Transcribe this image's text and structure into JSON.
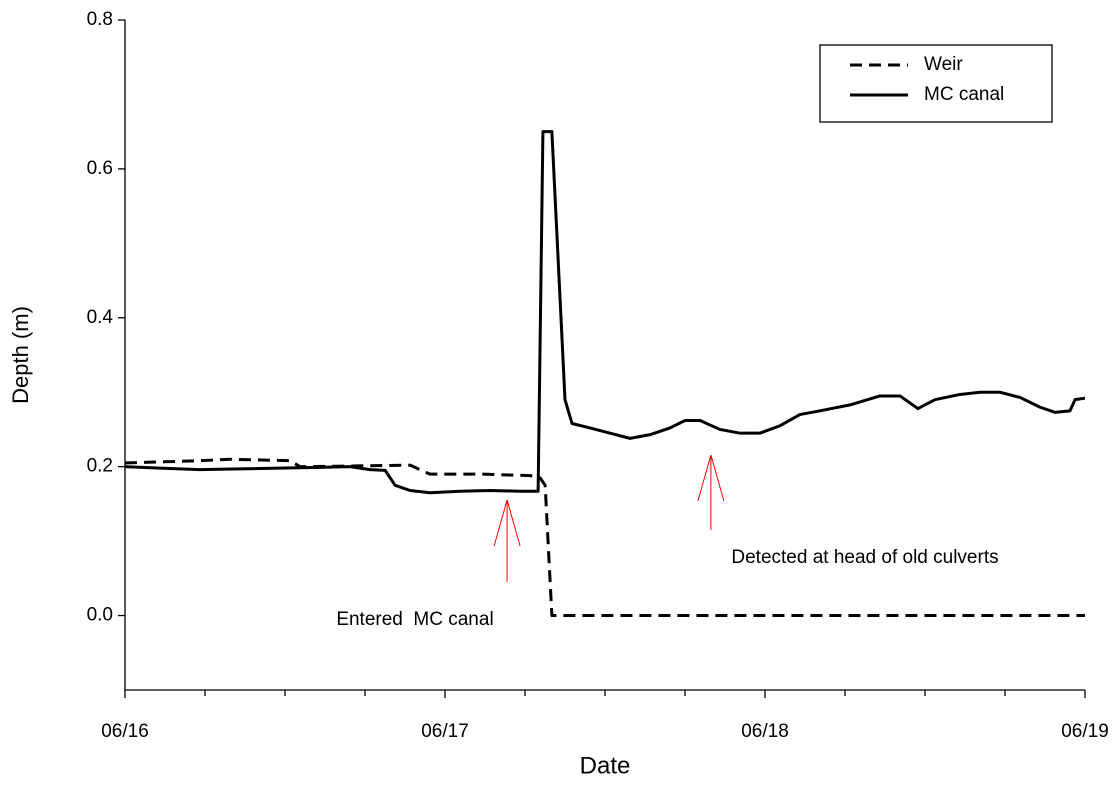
{
  "chart_data": {
    "type": "line",
    "xlabel": "Date",
    "ylabel": "Depth (m)",
    "xlim": [
      0,
      3
    ],
    "ylim": [
      -0.1,
      0.8
    ],
    "xticks": [
      {
        "value": 0,
        "label": "06/16"
      },
      {
        "value": 1,
        "label": "06/17"
      },
      {
        "value": 2,
        "label": "06/18"
      },
      {
        "value": 3,
        "label": "06/19"
      }
    ],
    "xminorticks": [
      0.25,
      0.5,
      0.75,
      1.25,
      1.5,
      1.75,
      2.25,
      2.5,
      2.75
    ],
    "yticks": [
      {
        "value": 0,
        "label": "0.0"
      },
      0.2,
      0.4,
      0.6,
      0.8
    ],
    "legend": "upper right",
    "series": [
      {
        "name": "Weir",
        "color": "#000000",
        "style": "dashed",
        "x": [
          0,
          0.234,
          0.328,
          0.516,
          0.547,
          0.891,
          0.953,
          1.109,
          1.266,
          1.297,
          1.313,
          1.334,
          3
        ],
        "values": [
          0.205,
          0.208,
          0.21,
          0.208,
          0.2,
          0.202,
          0.19,
          0.19,
          0.188,
          0.185,
          0.175,
          0,
          0
        ]
      },
      {
        "name": "MC canal",
        "color": "#000000",
        "style": "solid",
        "x": [
          0,
          0.109,
          0.234,
          0.359,
          0.484,
          0.609,
          0.703,
          0.766,
          0.813,
          0.844,
          0.891,
          0.953,
          1.047,
          1.141,
          1.234,
          1.291,
          1.306,
          1.334,
          1.375,
          1.397,
          1.453,
          1.516,
          1.578,
          1.641,
          1.703,
          1.75,
          1.797,
          1.859,
          1.922,
          1.984,
          2.047,
          2.109,
          2.172,
          2.266,
          2.359,
          2.422,
          2.478,
          2.531,
          2.609,
          2.672,
          2.734,
          2.797,
          2.859,
          2.906,
          2.953,
          2.969,
          3
        ],
        "values": [
          0.2,
          0.198,
          0.196,
          0.197,
          0.198,
          0.199,
          0.2,
          0.196,
          0.195,
          0.175,
          0.168,
          0.165,
          0.167,
          0.168,
          0.167,
          0.167,
          0.65,
          0.65,
          0.29,
          0.258,
          0.252,
          0.245,
          0.238,
          0.243,
          0.252,
          0.262,
          0.262,
          0.25,
          0.245,
          0.245,
          0.255,
          0.27,
          0.275,
          0.283,
          0.295,
          0.295,
          0.278,
          0.29,
          0.297,
          0.3,
          0.3,
          0.293,
          0.28,
          0.273,
          0.275,
          0.29,
          0.292
        ]
      }
    ],
    "annotations": [
      "Entered  MC canal",
      "Detected at head of old culverts"
    ],
    "annotation_color": "#ff0000"
  }
}
